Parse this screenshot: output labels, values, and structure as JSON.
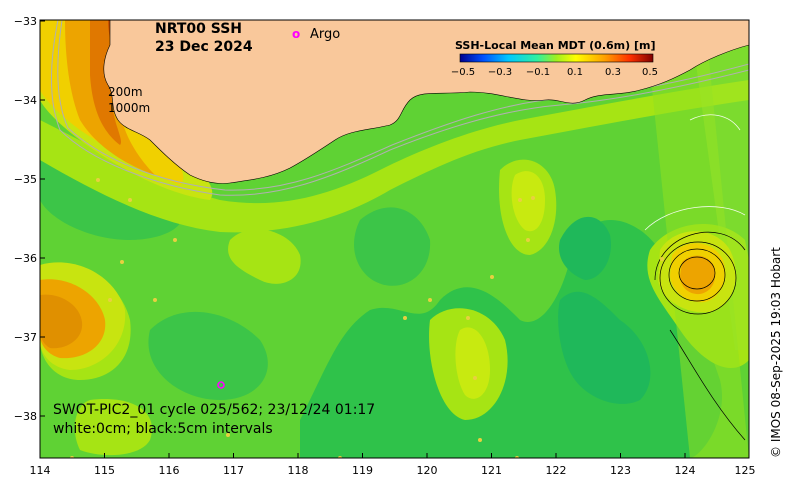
{
  "map": {
    "title_line1": "NRT00 SSH",
    "title_line2": "23 Dec 2024",
    "legend_marker": "o",
    "legend_label": "Argo",
    "depth_label_1": "200m",
    "depth_label_2": "1000m",
    "swot_line1": "SWOT-PIC2_01 cycle 025/562; 23/12/24 01:17",
    "swot_line2": "white:0cm; black:5cm intervals",
    "credit": "© IMOS 08-Sep-2025 19:03 Hobart"
  },
  "colorbar": {
    "title": "SSH-Local Mean MDT (0.6m) [m]",
    "ticks": [
      "−0.5",
      "−0.3",
      "−0.1",
      "0.1",
      "0.3",
      "0.5"
    ],
    "colors": [
      "#00008f",
      "#0050ff",
      "#00c8ff",
      "#30f0a0",
      "#a0f020",
      "#ffff00",
      "#ffa000",
      "#ff3000",
      "#800000"
    ]
  },
  "axes": {
    "x_ticks": [
      "114",
      "115",
      "116",
      "117",
      "118",
      "119",
      "120",
      "121",
      "122",
      "123",
      "124",
      "125"
    ],
    "y_ticks": [
      "−33",
      "−34",
      "−35",
      "−36",
      "−37",
      "−38"
    ]
  },
  "colors": {
    "land": "#f9c89b",
    "ocean_base": "#5fd234",
    "argo": "#ff00ff"
  }
}
